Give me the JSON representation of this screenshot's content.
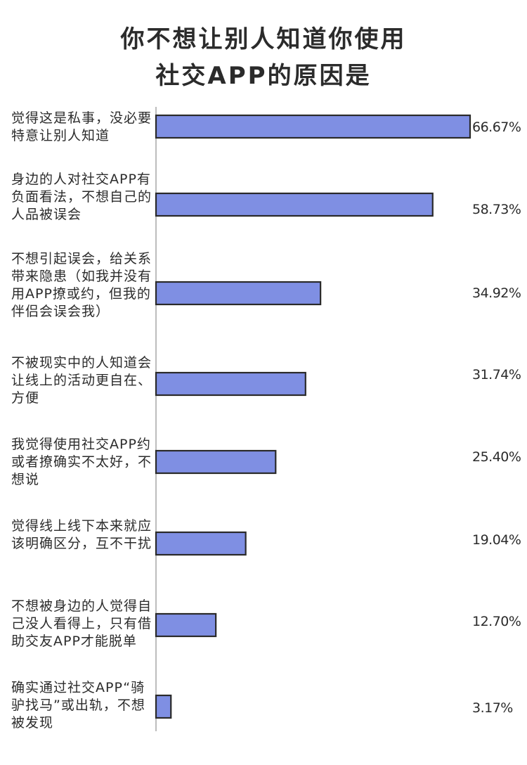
{
  "title_lines": [
    "你不想让别人知道你使用",
    "社交APP的原因是"
  ],
  "colors": {
    "bar": "#7f8fe3",
    "bar_stroke": "#2a2a2a",
    "axis": "#bdbdbd",
    "text": "#2b2b2b"
  },
  "chart_data": {
    "type": "bar",
    "orientation": "horizontal",
    "title": "你不想让别人知道你使用社交APP的原因是",
    "categories": [
      "觉得这是私事，没必要特意让别人知道",
      "身边的人对社交APP有负面看法，不想自己的人品被误会",
      "不想引起误会，给关系带来隐患（如我并没有用APP撩或约，但我的伴侣会误会我）",
      "不被现实中的人知道会让线上的活动更自在、方便",
      "我觉得使用社交APP约或者撩确实不太好，不想说",
      "觉得线上线下本来就应该明确区分，互不干扰",
      "不想被身边的人觉得自己没人看得上，只有借助交友APP才能脱单",
      "确实通过社交APP“骑驴找马”或出轨，不想被发现"
    ],
    "values": [
      66.67,
      58.73,
      34.92,
      31.74,
      25.4,
      19.04,
      12.7,
      3.17
    ],
    "value_labels": [
      "66.67%",
      "58.73%",
      "34.92%",
      "31.74%",
      "25.40%",
      "19.04%",
      "12.70%",
      "3.17%"
    ],
    "unit": "%",
    "xlim": [
      0,
      66.67
    ],
    "grid": false,
    "legend": "none"
  }
}
